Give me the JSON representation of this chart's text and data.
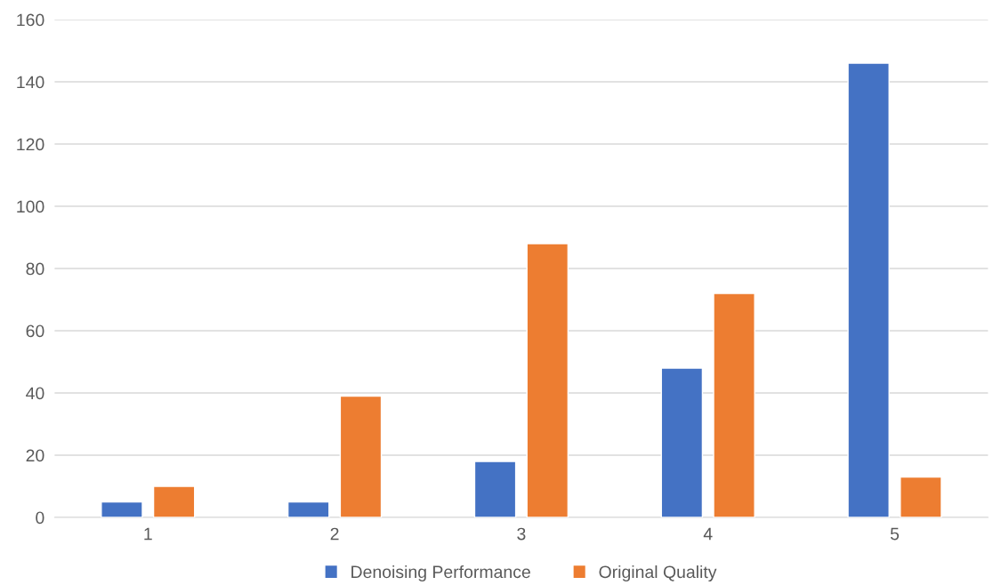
{
  "chart_data": {
    "type": "bar",
    "categories": [
      "1",
      "2",
      "3",
      "4",
      "5"
    ],
    "series": [
      {
        "name": "Denoising Performance",
        "color": "#4472c4",
        "values": [
          5,
          5,
          18,
          48,
          146
        ]
      },
      {
        "name": "Original Quality",
        "color": "#ed7d31",
        "values": [
          10,
          39,
          88,
          72,
          13
        ]
      }
    ],
    "ylim": [
      0,
      160
    ],
    "yticks": [
      0,
      20,
      40,
      60,
      80,
      100,
      120,
      140,
      160
    ],
    "grid": "y",
    "legend": "bottom"
  }
}
